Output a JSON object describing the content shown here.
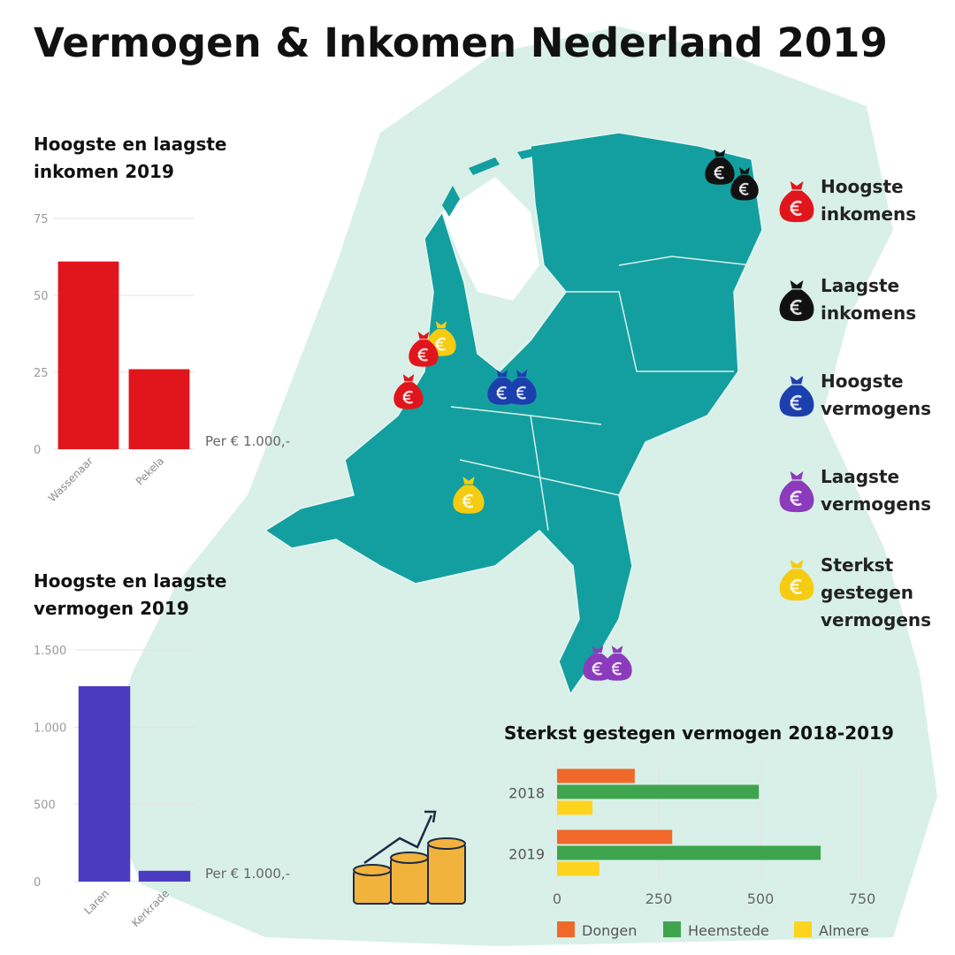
{
  "title": "Vermogen & Inkomen Nederland 2019",
  "legend": [
    {
      "label": "Hoogste inkomens",
      "color": "#e0161c"
    },
    {
      "label": "Laagste inkomens",
      "color": "#111111"
    },
    {
      "label": "Hoogste vermogens",
      "color": "#1c3fae"
    },
    {
      "label": "Laagste vermogens",
      "color": "#8b3bbb"
    },
    {
      "label": "Sterkst gestegen vermogens",
      "color": "#f5cc12"
    }
  ],
  "chart_data": [
    {
      "type": "bar",
      "title": "Hoogste en laagste inkomen 2019",
      "note": "Per € 1.000,-",
      "categories": [
        "Wassenaar",
        "Pekela"
      ],
      "values": [
        61,
        26
      ],
      "color": "#e0161c",
      "ylim": [
        0,
        75
      ],
      "yticks": [
        0,
        25,
        50,
        75
      ],
      "grid": true
    },
    {
      "type": "bar",
      "title": "Hoogste en laagste vermogen 2019",
      "note": "Per € 1.000,-",
      "categories": [
        "Laren",
        "Kerkrade"
      ],
      "values": [
        1265,
        70
      ],
      "color": "#4a3cc0",
      "ylim": [
        0,
        1500
      ],
      "yticks": [
        0,
        500,
        {
          "value": 1000,
          "label": "1.000"
        },
        {
          "value": 1500,
          "label": "1.500"
        }
      ],
      "grid": true
    },
    {
      "type": "barh",
      "title": "Sterkst gestegen vermogen 2018-2019",
      "categories": [
        "2018",
        "2019"
      ],
      "series": [
        {
          "name": "Dongen",
          "color": "#f0692a",
          "values": [
            191,
            283
          ]
        },
        {
          "name": "Heemstede",
          "color": "#3ea54e",
          "values": [
            496,
            648
          ]
        },
        {
          "name": "Almere",
          "color": "#ffd31e",
          "values": [
            87,
            104
          ]
        }
      ],
      "xlim": [
        0,
        750
      ],
      "xticks": [
        0,
        250,
        500,
        750
      ],
      "grid": true
    }
  ]
}
